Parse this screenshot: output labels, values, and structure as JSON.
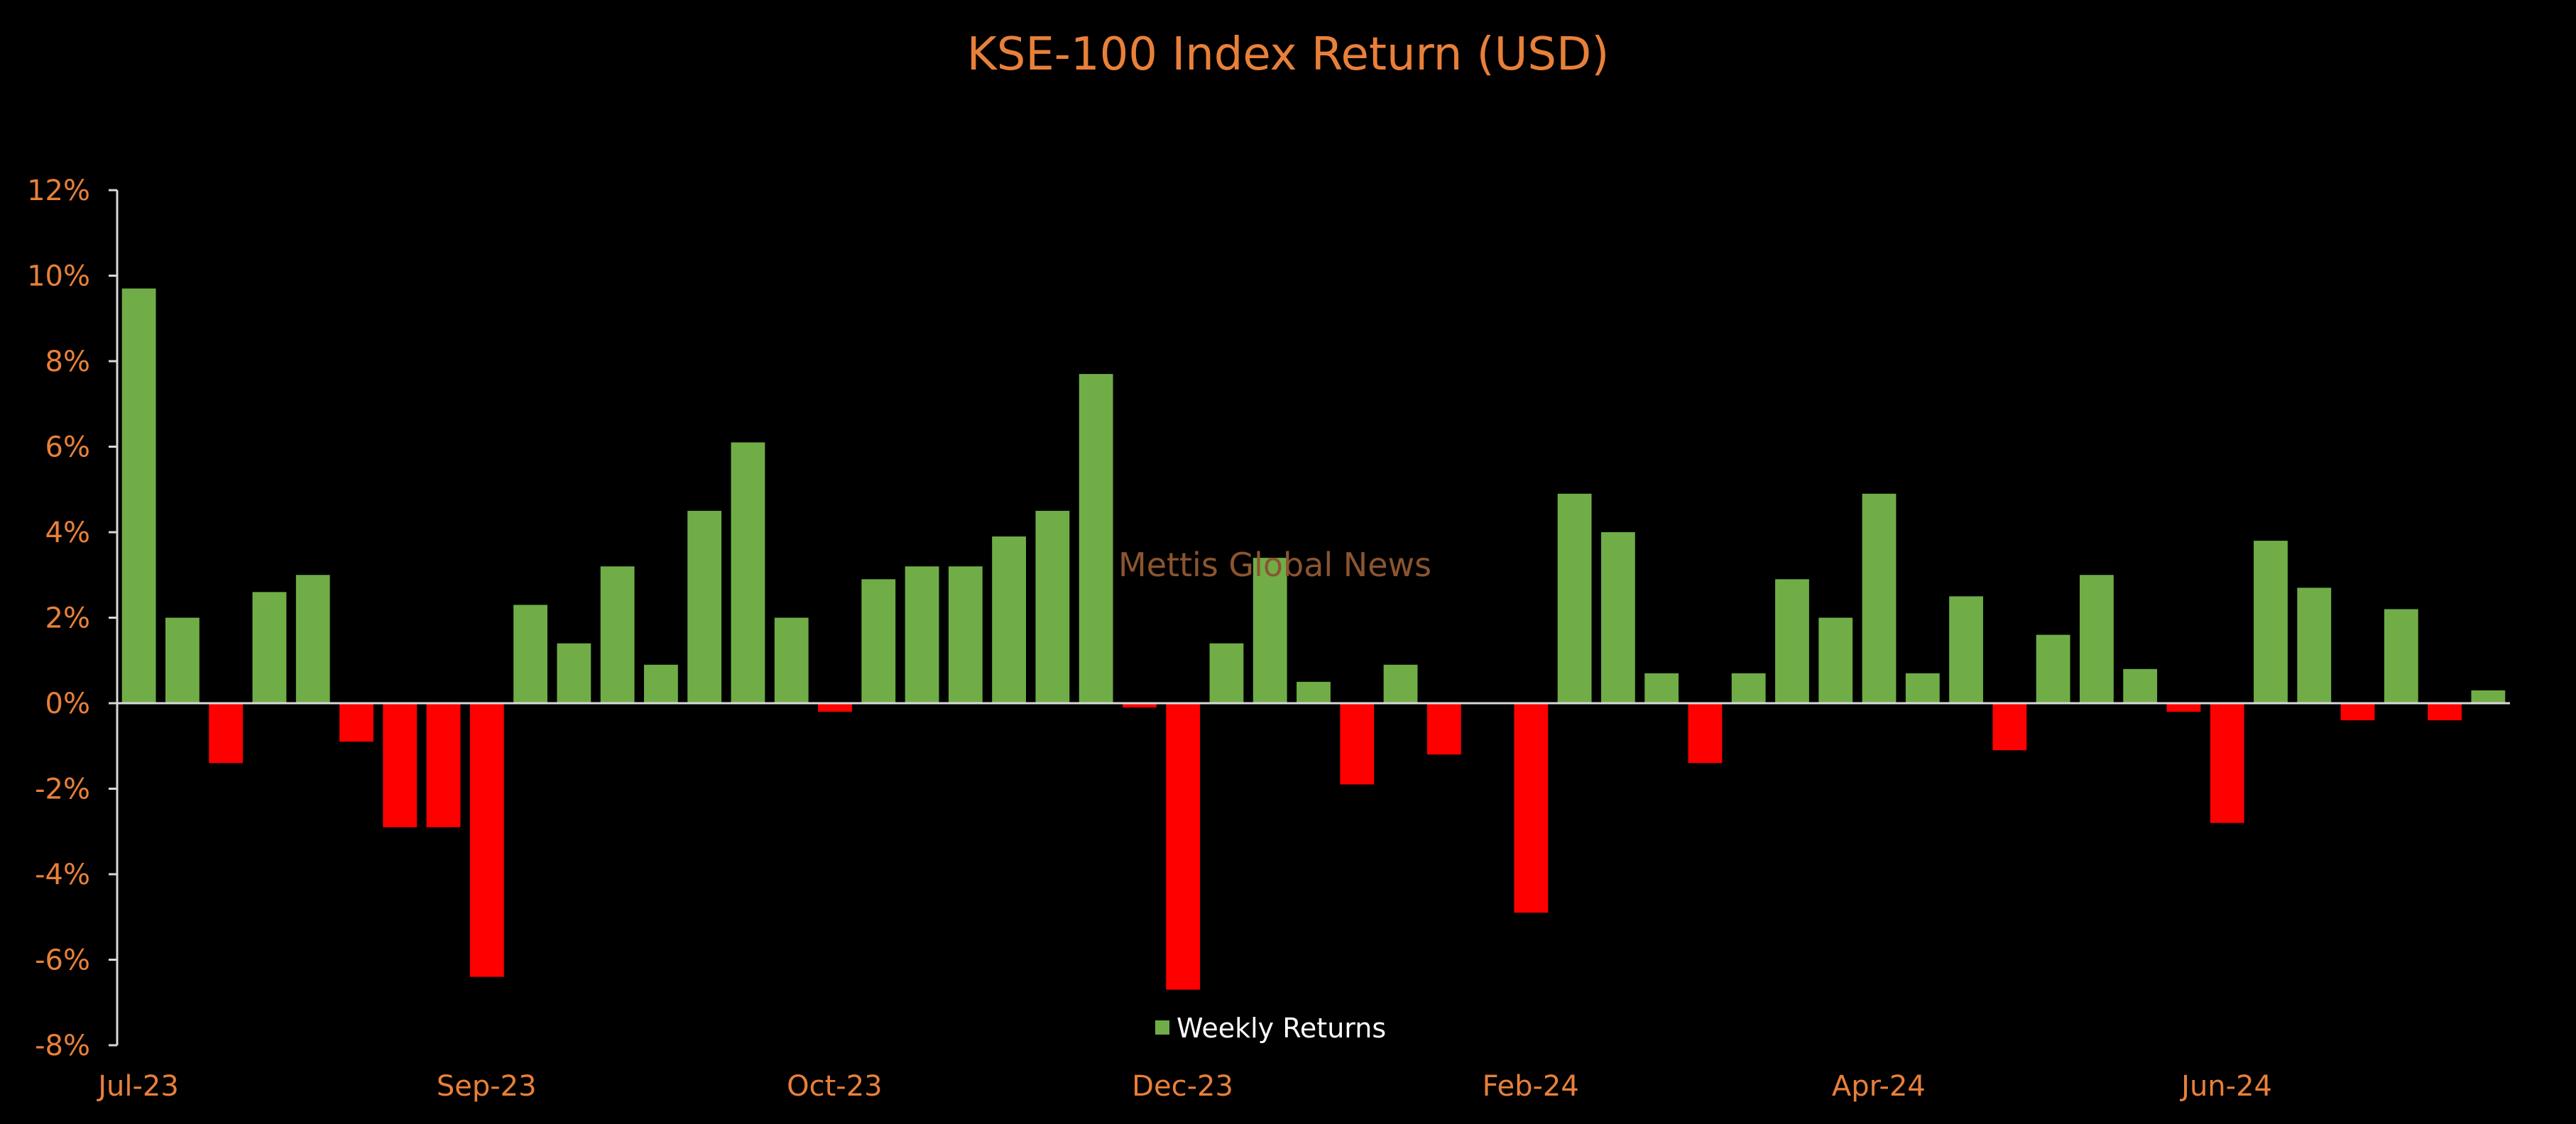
{
  "chart_data": {
    "type": "bar",
    "title": "KSE-100 Index Return (USD)",
    "xlabel": "",
    "ylabel": "",
    "ylim": [
      -0.08,
      0.12
    ],
    "ytick_values": [
      -0.08,
      -0.06,
      -0.04,
      -0.02,
      0,
      0.02,
      0.04,
      0.06,
      0.08,
      0.1,
      0.12
    ],
    "ytick_labels": [
      "-8%",
      "-6%",
      "-4%",
      "-2%",
      "0%",
      "2%",
      "4%",
      "6%",
      "8%",
      "10%",
      "12%"
    ],
    "xtick_labels": [
      {
        "label": "Jul-23",
        "index": 0
      },
      {
        "label": "Sep-23",
        "index": 8
      },
      {
        "label": "Oct-23",
        "index": 16
      },
      {
        "label": "Dec-23",
        "index": 24
      },
      {
        "label": "Feb-24",
        "index": 32
      },
      {
        "label": "Apr-24",
        "index": 40
      },
      {
        "label": "Jun-24",
        "index": 48
      }
    ],
    "grid": false,
    "legend": {
      "position": "bottom-center",
      "entries": [
        "Weekly Returns"
      ]
    },
    "series": [
      {
        "name": "Weekly Returns",
        "positive_color": "#70AD47",
        "negative_color": "#FF0000",
        "values": [
          0.097,
          0.02,
          -0.014,
          0.026,
          0.03,
          -0.009,
          -0.029,
          -0.029,
          -0.064,
          0.023,
          0.014,
          0.032,
          0.009,
          0.045,
          0.061,
          0.02,
          -0.002,
          0.029,
          0.032,
          0.032,
          0.039,
          0.045,
          0.077,
          -0.001,
          -0.067,
          0.014,
          0.034,
          0.005,
          -0.019,
          0.009,
          -0.012,
          0.0,
          -0.049,
          0.049,
          0.04,
          0.007,
          -0.014,
          0.007,
          0.029,
          0.02,
          0.049,
          0.007,
          0.025,
          -0.011,
          0.016,
          0.03,
          0.008,
          -0.002,
          -0.028,
          0.038,
          0.027,
          -0.004,
          0.022,
          -0.004,
          0.003
        ]
      }
    ],
    "annotations": [
      "Mettis Global News"
    ]
  },
  "colors": {
    "background": "#000000",
    "text": "#E8803A",
    "axis": "#D9D9D9",
    "watermark": "#8B5530"
  }
}
